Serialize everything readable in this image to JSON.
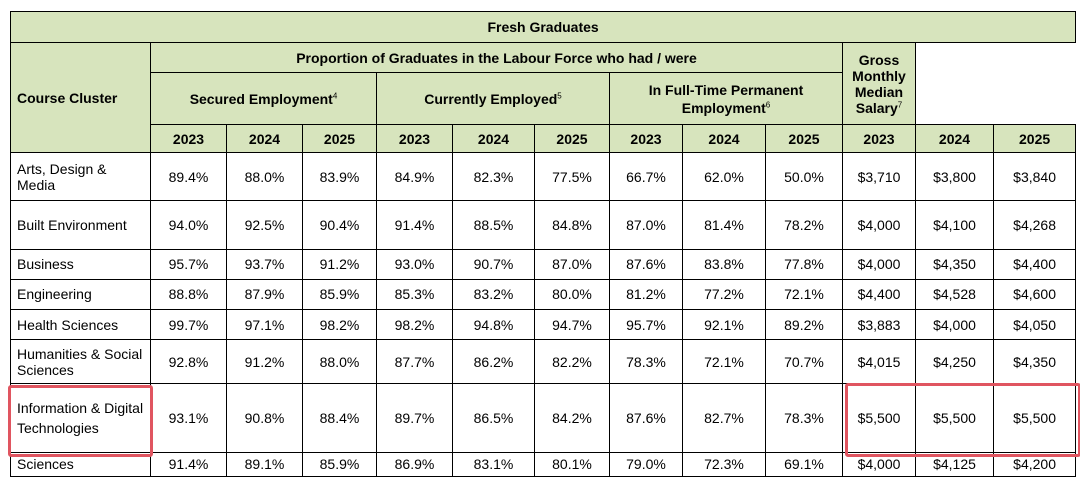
{
  "table": {
    "title": "Fresh Graduates",
    "col_cluster": "Course Cluster",
    "proportion_header": "Proportion of Graduates in the Labour Force who had / were",
    "groups": [
      {
        "label": "Secured Employment",
        "note": "4"
      },
      {
        "label": "Currently Employed",
        "note": "5"
      },
      {
        "label": "In Full-Time Permanent Employment",
        "note": "6"
      },
      {
        "label": "Gross Monthly Median Salary",
        "note": "7"
      }
    ],
    "years": [
      "2023",
      "2024",
      "2025"
    ],
    "rows": [
      {
        "cluster": "Arts, Design & Media",
        "values": [
          "89.4%",
          "88.0%",
          "83.9%",
          "84.9%",
          "82.3%",
          "77.5%",
          "66.7%",
          "62.0%",
          "50.0%",
          "$3,710",
          "$3,800",
          "$3,840"
        ]
      },
      {
        "cluster": "Built Environment",
        "values": [
          "94.0%",
          "92.5%",
          "90.4%",
          "91.4%",
          "88.5%",
          "84.8%",
          "87.0%",
          "81.4%",
          "78.2%",
          "$4,000",
          "$4,100",
          "$4,268"
        ]
      },
      {
        "cluster": "Business",
        "values": [
          "95.7%",
          "93.7%",
          "91.2%",
          "93.0%",
          "90.7%",
          "87.0%",
          "87.6%",
          "83.8%",
          "77.8%",
          "$4,000",
          "$4,350",
          "$4,400"
        ]
      },
      {
        "cluster": "Engineering",
        "values": [
          "88.8%",
          "87.9%",
          "85.9%",
          "85.3%",
          "83.2%",
          "80.0%",
          "81.2%",
          "77.2%",
          "72.1%",
          "$4,400",
          "$4,528",
          "$4,600"
        ]
      },
      {
        "cluster": "Health Sciences",
        "values": [
          "99.7%",
          "97.1%",
          "98.2%",
          "98.2%",
          "94.8%",
          "94.7%",
          "95.7%",
          "92.1%",
          "89.2%",
          "$3,883",
          "$4,000",
          "$4,050"
        ]
      },
      {
        "cluster": "Humanities & Social Sciences",
        "values": [
          "92.8%",
          "91.2%",
          "88.0%",
          "87.7%",
          "86.2%",
          "82.2%",
          "78.3%",
          "72.1%",
          "70.7%",
          "$4,015",
          "$4,250",
          "$4,350"
        ]
      },
      {
        "cluster": "Information & Digital Technologies",
        "values": [
          "93.1%",
          "90.8%",
          "88.4%",
          "89.7%",
          "86.5%",
          "84.2%",
          "87.6%",
          "82.7%",
          "78.3%",
          "$5,500",
          "$5,500",
          "$5,500"
        ]
      },
      {
        "cluster": "Sciences",
        "values": [
          "91.4%",
          "89.1%",
          "85.9%",
          "86.9%",
          "83.1%",
          "80.1%",
          "79.0%",
          "72.3%",
          "69.1%",
          "$4,000",
          "$4,125",
          "$4,200"
        ]
      }
    ]
  },
  "highlight_color": "#e05560"
}
